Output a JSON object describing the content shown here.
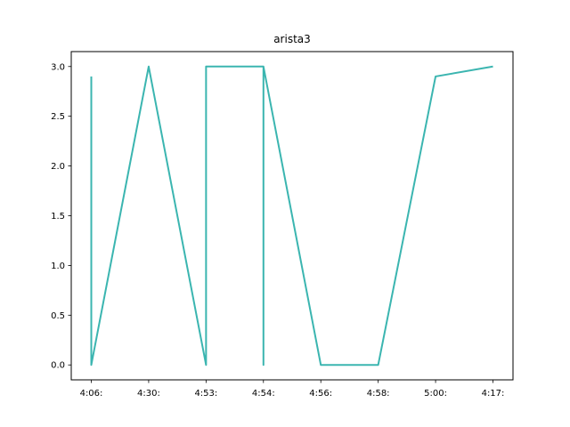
{
  "chart_data": {
    "type": "line",
    "title": "arista3",
    "xlabel": "",
    "ylabel": "",
    "categories": [
      "4:06:",
      "4:30:",
      "4:53:",
      "4:54:",
      "4:56:",
      "4:58:",
      "5:00:",
      "4:17:"
    ],
    "ylim": [
      -0.15,
      3.15
    ],
    "yticks": [
      0.0,
      0.5,
      1.0,
      1.5,
      2.0,
      2.5,
      3.0
    ],
    "ytick_labels": [
      "0.0",
      "0.5",
      "1.0",
      "1.5",
      "2.0",
      "2.5",
      "3.0"
    ],
    "grid": false,
    "series": [
      {
        "color": "#3bb5b0",
        "points": [
          [
            0,
            2.9
          ],
          [
            0,
            0.0
          ],
          [
            1,
            3.0
          ],
          [
            2,
            0.0
          ],
          [
            2,
            3.0
          ],
          [
            3,
            3.0
          ],
          [
            3,
            0.0
          ],
          [
            3,
            3.0
          ],
          [
            4,
            0.0
          ],
          [
            5,
            0.0
          ],
          [
            6,
            2.9
          ],
          [
            7,
            3.0
          ]
        ]
      }
    ]
  }
}
